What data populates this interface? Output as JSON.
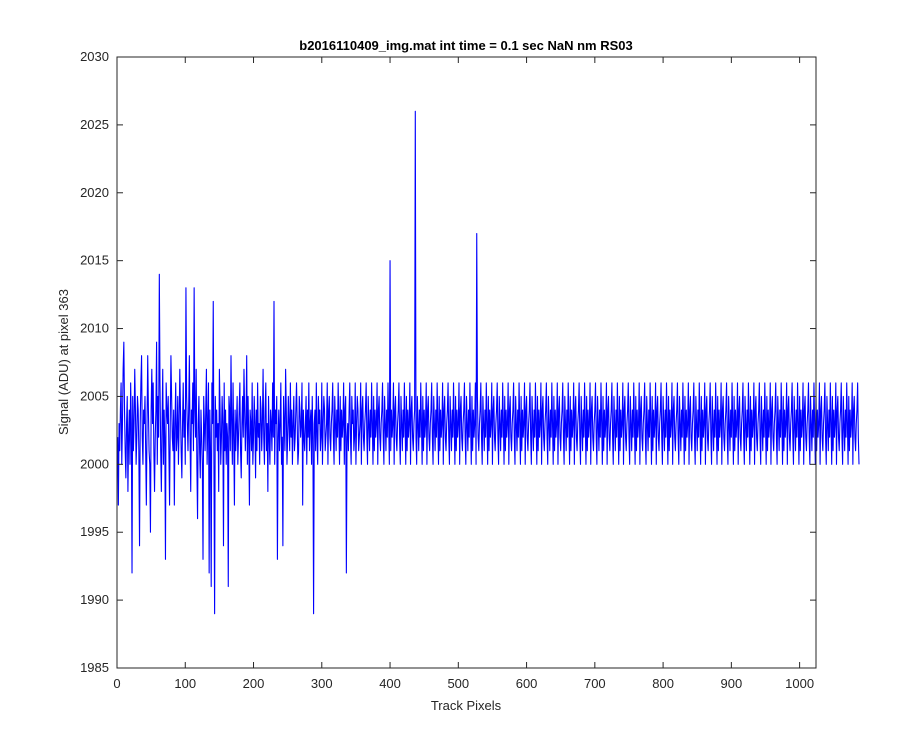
{
  "chart_data": {
    "type": "line",
    "title": "b2016110409_img.mat int time = 0.1 sec  NaN nm RS03",
    "xlabel": "Track Pixels",
    "ylabel": "Signal (ADU) at pixel 363",
    "xlim": [
      0,
      1024
    ],
    "ylim": [
      1985,
      2030
    ],
    "xticks": [
      0,
      100,
      200,
      300,
      400,
      500,
      600,
      700,
      800,
      900,
      1000
    ],
    "yticks": [
      1985,
      1990,
      1995,
      2000,
      2005,
      2010,
      2015,
      2020,
      2025,
      2030
    ],
    "xtick_labels": [
      "0",
      "100",
      "200",
      "300",
      "400",
      "500",
      "600",
      "700",
      "800",
      "900",
      "1000"
    ],
    "ytick_labels": [
      "1985",
      "1990",
      "1995",
      "2000",
      "2005",
      "2010",
      "2015",
      "2020",
      "2025",
      "2030"
    ],
    "grid": false,
    "legend": "none",
    "line_color": "#0000ff",
    "series": [
      {
        "x_start": 1,
        "x_step": 1,
        "values": [
          2002,
          1997,
          2003,
          2001,
          2004,
          2006,
          2000,
          2003,
          2007,
          2009,
          2004,
          2001,
          1999,
          2003,
          2005,
          1998,
          2002,
          2004,
          2000,
          2006,
          2003,
          1992,
          2005,
          2001,
          2003,
          2007,
          2004,
          2000,
          2002,
          2005,
          2004,
          2001,
          1994,
          2003,
          2006,
          2008,
          2002,
          2000,
          2004,
          2003,
          2005,
          2001,
          1997,
          2003,
          2008,
          2004,
          2001,
          2000,
          1995,
          2004,
          2007,
          2003,
          2006,
          2001,
          1998,
          2002,
          2004,
          2009,
          2000,
          2005,
          2002,
          2014,
          2006,
          2001,
          1998,
          2003,
          2007,
          2000,
          2004,
          2002,
          1993,
          2006,
          2004,
          2003,
          2005,
          2001,
          1997,
          2003,
          2008,
          2005,
          2002,
          2001,
          2004,
          1997,
          2003,
          2006,
          2001,
          2002,
          2005,
          2000,
          2003,
          2007,
          2004,
          2001,
          1999,
          2003,
          2006,
          2002,
          2004,
          2000,
          2013,
          2005,
          2003,
          2001,
          2004,
          2008,
          2002,
          1998,
          2004,
          2003,
          2006,
          2001,
          2013,
          2004,
          2002,
          2007,
          2000,
          1996,
          2003,
          2005,
          2001,
          1999,
          2004,
          2002,
          2000,
          1993,
          2005,
          2003,
          2001,
          2004,
          2007,
          2000,
          2003,
          2006,
          1992,
          2004,
          2001,
          1991,
          2006,
          2003,
          2012,
          2000,
          1989,
          2005,
          2002,
          2004,
          2001,
          2003,
          1998,
          2007,
          2004,
          2000,
          2002,
          2005,
          2003,
          1994,
          2006,
          2001,
          2004,
          2000,
          2003,
          2002,
          1991,
          2005,
          2004,
          2001,
          2008,
          2003,
          2000,
          2006,
          2002,
          1997,
          2004,
          2001,
          2003,
          2005,
          2000,
          2002,
          2004,
          2006,
          2001,
          1999,
          2003,
          2005,
          2002,
          2007,
          2004,
          2001,
          2003,
          2008,
          2000,
          2005,
          2002,
          1997,
          2004,
          2003,
          2001,
          2006,
          2000,
          2002,
          2005,
          2003,
          1999,
          2004,
          2001,
          2006,
          2002,
          2003,
          2000,
          2005,
          2004,
          2001,
          2003,
          2007,
          2002,
          2000,
          2004,
          2006,
          2001,
          2003,
          1998,
          2005,
          2002,
          2000,
          2004,
          2003,
          2001,
          2006,
          2002,
          2012,
          2000,
          2004,
          2003,
          2005,
          1993,
          2002,
          2004,
          2001,
          2003,
          2006,
          2000,
          2002,
          1994,
          2005,
          2003,
          2001,
          2007,
          2004,
          2000,
          2002,
          2005,
          2003,
          2001,
          2006,
          2002,
          2004,
          2000,
          2003,
          2005,
          2001,
          2002,
          2004,
          2006,
          2003,
          2000,
          2001,
          2005,
          2004,
          2002,
          2003,
          2006,
          1997,
          2004,
          2002,
          2001,
          2003,
          2005,
          2000,
          2004,
          2002,
          2006,
          2001,
          2003,
          2004,
          2000,
          2005,
          2002,
          1989,
          2003,
          2004,
          2001,
          2006,
          2002,
          2000,
          2005,
          2003,
          2004,
          2001,
          2002,
          2006,
          2000,
          2003,
          2005,
          2004,
          2001,
          2002,
          2003,
          2006,
          2000,
          2004,
          2005,
          2002,
          2001,
          2003,
          2004,
          2006,
          2002,
          2000,
          2005,
          2003,
          2001,
          2004,
          2002,
          2006,
          2003,
          2000,
          2005,
          2001,
          2004,
          2002,
          2003,
          2006,
          2000,
          2004,
          2005,
          1992,
          2002,
          2003,
          2001,
          2004,
          2006,
          2002,
          2000,
          2005,
          2003,
          2004,
          2001,
          2002,
          2006,
          2000,
          2003,
          2005,
          2004,
          2001,
          2002,
          2003,
          2006,
          2000,
          2004,
          2005,
          2002,
          2001,
          2003,
          2004,
          2006,
          2002,
          2000,
          2005,
          2003,
          2001,
          2004,
          2002,
          2006,
          2003,
          2000,
          2005,
          2001,
          2004,
          2002,
          2003,
          2006,
          2000,
          2004,
          2005,
          2002,
          2001,
          2003,
          2004,
          2006,
          2002,
          2000,
          2005,
          2003,
          2001,
          2004,
          2002,
          2006,
          2003,
          2000,
          2015,
          2001,
          2004,
          2002,
          2003,
          2006,
          2000,
          2004,
          2005,
          2002,
          2001,
          2003,
          2004,
          2006,
          2002,
          2000,
          2005,
          2003,
          2001,
          2004,
          2002,
          2006,
          2003,
          2000,
          2005,
          2001,
          2004,
          2002,
          2003,
          2006,
          2000,
          2004,
          2005,
          2002,
          2001,
          2003,
          2004,
          2026,
          2002,
          2000,
          2005,
          2003,
          2001,
          2004,
          2002,
          2006,
          2003,
          2000,
          2005,
          2001,
          2004,
          2002,
          2003,
          2006,
          2000,
          2004,
          2005,
          2002,
          2001,
          2003,
          2004,
          2006,
          2002,
          2000,
          2005,
          2003,
          2001,
          2004,
          2002,
          2006,
          2003,
          2000,
          2005,
          2001,
          2004,
          2002,
          2003,
          2006,
          2000,
          2004,
          2005,
          2002,
          2001,
          2003,
          2004,
          2006,
          2002,
          2000,
          2005,
          2003,
          2001,
          2004,
          2002,
          2006,
          2003,
          2000,
          2005,
          2001,
          2004,
          2002,
          2003,
          2006,
          2000,
          2004,
          2005,
          2002,
          2001,
          2003,
          2004,
          2006,
          2002,
          2000,
          2005,
          2003,
          2001,
          2004,
          2002,
          2006,
          2003,
          2000,
          2005,
          2001,
          2004,
          2002,
          2003,
          2006,
          2000,
          2017,
          2005,
          2002,
          2001,
          2003,
          2004,
          2006,
          2002,
          2000,
          2005,
          2003,
          2001,
          2004,
          2002,
          2006,
          2003,
          2000,
          2005,
          2001,
          2004,
          2002,
          2003,
          2006,
          2000,
          2004,
          2005,
          2002,
          2001,
          2003,
          2004,
          2006,
          2002,
          2000,
          2005,
          2003,
          2001,
          2004,
          2002,
          2006,
          2003,
          2000,
          2005,
          2001,
          2004,
          2002,
          2003,
          2006,
          2000,
          2004,
          2005,
          2002,
          2001,
          2003,
          2004,
          2006,
          2002,
          2000,
          2005,
          2003,
          2001,
          2004,
          2002,
          2006,
          2003,
          2000,
          2005,
          2001,
          2004,
          2002,
          2003,
          2006,
          2000,
          2004,
          2005,
          2002,
          2001,
          2003,
          2004,
          2006,
          2002,
          2000,
          2005,
          2003,
          2001,
          2004,
          2002,
          2006,
          2003,
          2000,
          2005,
          2001,
          2004,
          2002,
          2003,
          2006,
          2000,
          2004,
          2005,
          2002,
          2001,
          2003,
          2004,
          2006,
          2002,
          2000,
          2005,
          2003,
          2001,
          2004,
          2002,
          2006,
          2003,
          2000,
          2005,
          2001,
          2004,
          2002,
          2003,
          2006,
          2000,
          2004,
          2005,
          2002,
          2001,
          2003,
          2004,
          2006,
          2002,
          2000,
          2005,
          2003,
          2001,
          2004,
          2002,
          2006,
          2003,
          2000,
          2005,
          2001,
          2004,
          2002,
          2003,
          2006,
          2000,
          2004,
          2005,
          2002,
          2001,
          2003,
          2004,
          2006,
          2002,
          2000,
          2005,
          2003,
          2001,
          2004,
          2002,
          2006,
          2003,
          2000,
          2005,
          2001,
          2004,
          2002,
          2003,
          2006,
          2000,
          2004,
          2005,
          2002,
          2001,
          2003,
          2004,
          2006,
          2002,
          2000,
          2005,
          2003,
          2001,
          2004,
          2002,
          2006,
          2003,
          2000,
          2005,
          2001,
          2004,
          2002,
          2003,
          2006,
          2000,
          2004,
          2005,
          2002,
          2001,
          2003,
          2004,
          2006,
          2002,
          2000,
          2005,
          2003,
          2001,
          2004,
          2002,
          2006,
          2003,
          2000,
          2005,
          2001,
          2004,
          2002,
          2003,
          2006,
          2000,
          2004,
          2005,
          2002,
          2001,
          2003,
          2004,
          2006,
          2002,
          2000,
          2005,
          2003,
          2001,
          2004,
          2002,
          2006,
          2003,
          2000,
          2005,
          2001,
          2004,
          2002,
          2003,
          2006,
          2000,
          2004,
          2005,
          2002,
          2001,
          2003,
          2004,
          2006,
          2002,
          2000,
          2005,
          2003,
          2001,
          2004,
          2002,
          2006,
          2003,
          2000,
          2005,
          2001,
          2004,
          2002,
          2003,
          2006,
          2000,
          2004,
          2005,
          2002,
          2001,
          2003,
          2004,
          2006,
          2002,
          2000,
          2005,
          2003,
          2001,
          2004,
          2002,
          2006,
          2003,
          2000,
          2005,
          2001,
          2004,
          2002,
          2003,
          2006,
          2000,
          2004,
          2005,
          2002,
          2001,
          2003,
          2004,
          2006,
          2002,
          2000,
          2005,
          2003,
          2001,
          2004,
          2002,
          2006,
          2003,
          2000,
          2005,
          2001,
          2004,
          2002,
          2003,
          2006,
          2000,
          2004,
          2005,
          2002,
          2001,
          2003,
          2004,
          2006,
          2002,
          2000,
          2005,
          2003,
          2001,
          2004,
          2002,
          2006,
          2003,
          2000,
          2005,
          2001,
          2004,
          2002,
          2003,
          2006,
          2000,
          2004,
          2005,
          2002,
          2001,
          2003,
          2004,
          2006,
          2002,
          2000,
          2005,
          2003,
          2001,
          2004,
          2002,
          2006,
          2003,
          2000,
          2005,
          2001,
          2004,
          2002,
          2003,
          2006,
          2000,
          2004,
          2005,
          2002,
          2001,
          2003,
          2004,
          2006,
          2002,
          2000,
          2005,
          2003,
          2001,
          2004,
          2002,
          2006,
          2003,
          2000,
          2005,
          2001,
          2004,
          2002,
          2003,
          2006,
          2000,
          2004,
          2005,
          2002,
          2001,
          2003,
          2004,
          2006,
          2002,
          2000,
          2005,
          2003,
          2001,
          2004,
          2002,
          2006,
          2003,
          2000,
          2005,
          2001,
          2004,
          2002,
          2003,
          2006,
          2000,
          2004,
          2005,
          2002,
          2001,
          2003,
          2004,
          2006,
          2002,
          2000,
          2005,
          2003,
          2001,
          2004,
          2002,
          2006,
          2003,
          2000,
          2005,
          2001,
          2004,
          2002,
          2003,
          2006,
          2000,
          2004,
          2005,
          2002,
          2001,
          2003,
          2004,
          2006,
          2002,
          2000,
          2005,
          2003,
          2001,
          2004,
          2002,
          2006,
          2003,
          2000,
          2005,
          2001,
          2004,
          2002,
          2003,
          2006,
          2000,
          2004,
          2005,
          2002,
          2001,
          2003,
          2004,
          2006,
          2002,
          2000,
          2005,
          2003,
          2001,
          2004,
          2002,
          2006,
          2003,
          2000,
          2005,
          2001,
          2004,
          2002,
          2003,
          2006,
          2000,
          2004,
          2005,
          2002,
          2001,
          2003,
          2004,
          2006,
          2002,
          2000,
          2005,
          2003,
          2001,
          2004,
          2002,
          2006,
          2003,
          2000,
          2005,
          2001,
          2004,
          2002,
          2003,
          2006,
          2000,
          2004,
          2005,
          2002,
          2001,
          2003,
          2004,
          2006,
          2002,
          2000,
          2005,
          2003,
          2001,
          2004,
          2002,
          2006,
          2003,
          2000,
          2005,
          2001,
          2004,
          2002,
          2003,
          2006,
          2000,
          2004,
          2005,
          2002,
          2001,
          2003,
          2004,
          2006,
          2002,
          2000,
          2005,
          2003,
          2001,
          2004,
          2002,
          2006,
          2003,
          2000,
          2005,
          2001,
          2004,
          2002,
          2003,
          2006,
          2000,
          2004,
          2005,
          2002,
          2001,
          2003,
          2004,
          2006,
          2002,
          2000
        ]
      }
    ]
  }
}
